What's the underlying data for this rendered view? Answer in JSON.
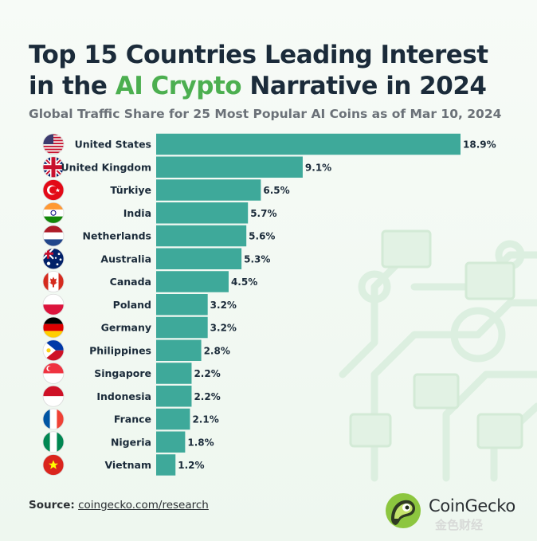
{
  "title": {
    "line1": "Top 15 Countries Leading Interest",
    "line2_pre": "in the ",
    "line2_highlight": "AI Crypto",
    "line2_post": " Narrative in 2024",
    "highlight_color": "#4caf50"
  },
  "subtitle": "Global Traffic Share for 25 Most Popular AI Coins as of Mar 10, 2024",
  "source": {
    "label": "Source:",
    "link_text": "coingecko.com/research"
  },
  "brand": {
    "name": "CoinGecko",
    "watermark": "金色财经",
    "logo_icon": "gecko-logo-icon"
  },
  "colors": {
    "bar": "#3ea99a",
    "text": "#1b2b3a"
  },
  "chart_data": {
    "type": "bar",
    "orientation": "horizontal",
    "unit": "%",
    "xlim": [
      0,
      18.9
    ],
    "grid": false,
    "categories": [
      "United States",
      "United Kingdom",
      "Türkiye",
      "India",
      "Netherlands",
      "Australia",
      "Canada",
      "Poland",
      "Germany",
      "Philippines",
      "Singapore",
      "Indonesia",
      "France",
      "Nigeria",
      "Vietnam"
    ],
    "values": [
      18.9,
      9.1,
      6.5,
      5.7,
      5.6,
      5.3,
      4.5,
      3.2,
      3.2,
      2.8,
      2.2,
      2.2,
      2.1,
      1.8,
      1.2
    ],
    "data_labels": [
      "18.9%",
      "9.1%",
      "6.5%",
      "5.7%",
      "5.6%",
      "5.3%",
      "4.5%",
      "3.2%",
      "3.2%",
      "2.8%",
      "2.2%",
      "2.2%",
      "2.1%",
      "1.8%",
      "1.2%"
    ],
    "flags": [
      "us-flag-icon",
      "uk-flag-icon",
      "turkey-flag-icon",
      "india-flag-icon",
      "netherlands-flag-icon",
      "australia-flag-icon",
      "canada-flag-icon",
      "poland-flag-icon",
      "germany-flag-icon",
      "philippines-flag-icon",
      "singapore-flag-icon",
      "indonesia-flag-icon",
      "france-flag-icon",
      "nigeria-flag-icon",
      "vietnam-flag-icon"
    ]
  }
}
